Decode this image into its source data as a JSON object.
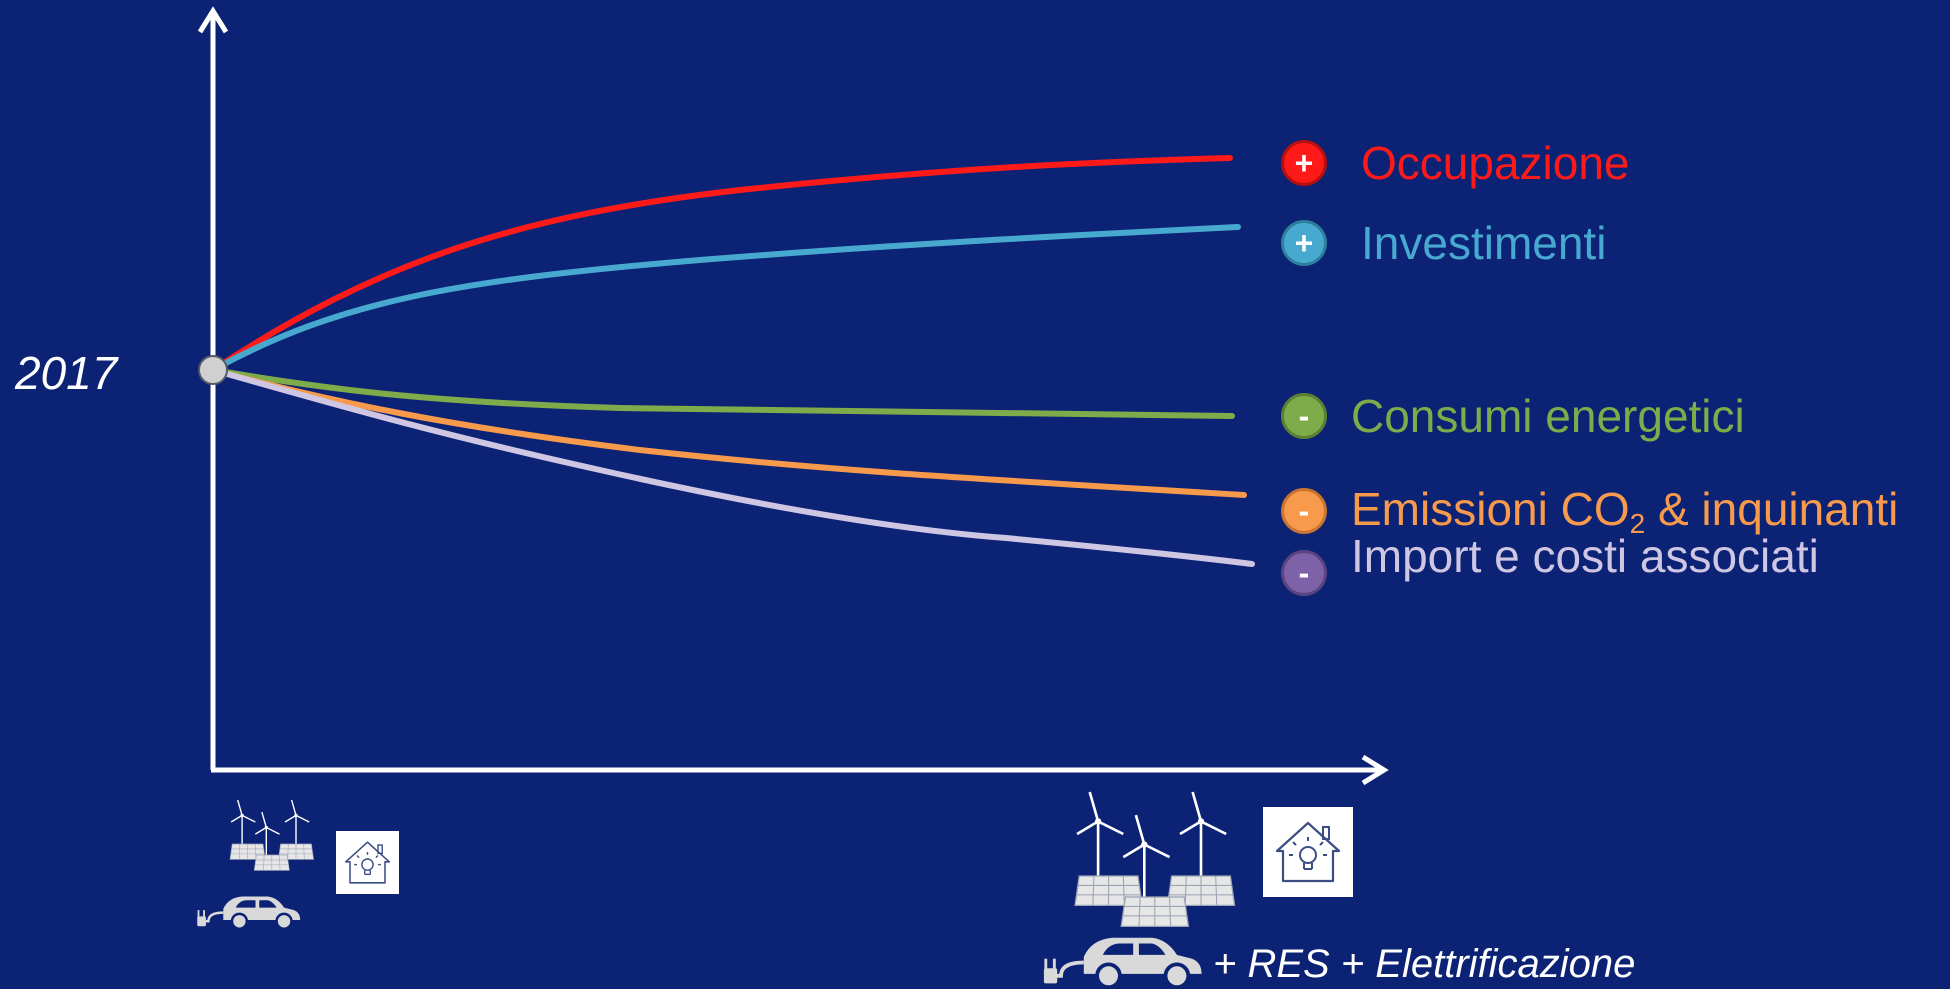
{
  "year_label": "2017",
  "colors": {
    "background": "#0c2275",
    "axis": "#ffffff",
    "occupazione": "#ff1a1a",
    "investimenti": "#47a9d0",
    "consumi": "#7fac4a",
    "emissioni": "#f79a4c",
    "import": "#cfc6e4",
    "import_badge": "#7e62a8",
    "icon_gray": "#d9d9d9"
  },
  "legend": [
    {
      "key": "occupazione",
      "sign": "+",
      "text": "Occupazione",
      "color": "#ff1a1a",
      "badge_color": "#ff1a1a"
    },
    {
      "key": "investimenti",
      "sign": "+",
      "text": "Investimenti",
      "color": "#47a9d0",
      "badge_color": "#47a9d0"
    },
    {
      "key": "consumi",
      "sign": "-",
      "text": "Consumi energetici",
      "color": "#7fac4a",
      "badge_color": "#7fac4a"
    },
    {
      "key": "emissioni",
      "sign": "-",
      "text_pre": "Emissioni CO",
      "text_sub": "2",
      "text_post": " & inquinanti",
      "color": "#f79a4c",
      "badge_color": "#f79a4c"
    },
    {
      "key": "import",
      "sign": "-",
      "text": "Import e costi associati",
      "color": "#cfc6e4",
      "badge_color": "#7e62a8"
    }
  ],
  "footer_label": "+ RES + Elettrificazione",
  "icons": {
    "start": [
      "wind-solar-icon",
      "house-lightbulb-icon",
      "electric-car-icon"
    ],
    "end": [
      "wind-solar-icon",
      "house-lightbulb-icon",
      "electric-car-icon"
    ]
  }
}
